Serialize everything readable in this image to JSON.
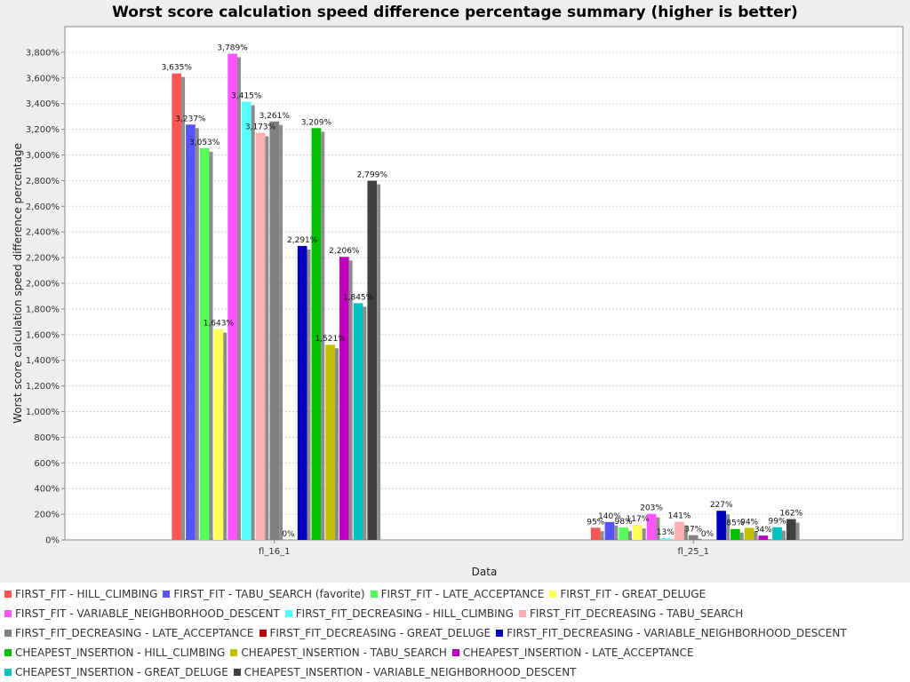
{
  "chart_data": {
    "type": "bar",
    "title": "Worst score calculation speed difference percentage summary (higher is better)",
    "xlabel": "Data",
    "ylabel": "Worst score calculation speed difference percentage",
    "ylim": [
      0,
      4000
    ],
    "yticks": [
      "0%",
      "200%",
      "400%",
      "600%",
      "800%",
      "1,000%",
      "1,200%",
      "1,400%",
      "1,600%",
      "1,800%",
      "2,000%",
      "2,200%",
      "2,400%",
      "2,600%",
      "2,800%",
      "3,000%",
      "3,200%",
      "3,400%",
      "3,600%",
      "3,800%"
    ],
    "ytick_values": [
      0,
      200,
      400,
      600,
      800,
      1000,
      1200,
      1400,
      1600,
      1800,
      2000,
      2200,
      2400,
      2600,
      2800,
      3000,
      3200,
      3400,
      3600,
      3800
    ],
    "grid": true,
    "legend_position": "bottom",
    "categories": [
      "fl_16_1",
      "fl_25_1"
    ],
    "series": [
      {
        "name": "FIRST_FIT - HILL_CLIMBING",
        "color": "#ff5555",
        "values": [
          3635,
          95
        ],
        "labels": [
          "3,635%",
          "95%"
        ]
      },
      {
        "name": "FIRST_FIT - TABU_SEARCH (favorite)",
        "color": "#5555ff",
        "values": [
          3237,
          140
        ],
        "labels": [
          "3,237%",
          "140%"
        ]
      },
      {
        "name": "FIRST_FIT - LATE_ACCEPTANCE",
        "color": "#55ff55",
        "values": [
          3053,
          98
        ],
        "labels": [
          "3,053%",
          "98%"
        ]
      },
      {
        "name": "FIRST_FIT - GREAT_DELUGE",
        "color": "#ffff55",
        "values": [
          1643,
          117
        ],
        "labels": [
          "1,643%",
          "117%"
        ]
      },
      {
        "name": "FIRST_FIT - VARIABLE_NEIGHBORHOOD_DESCENT",
        "color": "#ff55ff",
        "values": [
          3789,
          203
        ],
        "labels": [
          "3,789%",
          "203%"
        ]
      },
      {
        "name": "FIRST_FIT_DECREASING - HILL_CLIMBING",
        "color": "#55ffff",
        "values": [
          3415,
          13
        ],
        "labels": [
          "3,415%",
          "13%"
        ]
      },
      {
        "name": "FIRST_FIT_DECREASING - TABU_SEARCH",
        "color": "#ffafaf",
        "values": [
          3173,
          141
        ],
        "labels": [
          "3,173%",
          "141%"
        ]
      },
      {
        "name": "FIRST_FIT_DECREASING - LATE_ACCEPTANCE",
        "color": "#808080",
        "values": [
          3261,
          37
        ],
        "labels": [
          "3,261%",
          "37%"
        ]
      },
      {
        "name": "FIRST_FIT_DECREASING - GREAT_DELUGE",
        "color": "#c00000",
        "values": [
          0,
          0
        ],
        "labels": [
          "0%",
          "0%"
        ]
      },
      {
        "name": "FIRST_FIT_DECREASING - VARIABLE_NEIGHBORHOOD_DESCENT",
        "color": "#0000c0",
        "values": [
          2291,
          227
        ],
        "labels": [
          "2,291%",
          "227%"
        ]
      },
      {
        "name": "CHEAPEST_INSERTION - HILL_CLIMBING",
        "color": "#00c000",
        "values": [
          3209,
          85
        ],
        "labels": [
          "3,209%",
          "85%"
        ]
      },
      {
        "name": "CHEAPEST_INSERTION - TABU_SEARCH",
        "color": "#c0c000",
        "values": [
          1521,
          94
        ],
        "labels": [
          "1,521%",
          "94%"
        ]
      },
      {
        "name": "CHEAPEST_INSERTION - LATE_ACCEPTANCE",
        "color": "#c000c0",
        "values": [
          2206,
          34
        ],
        "labels": [
          "2,206%",
          "34%"
        ]
      },
      {
        "name": "CHEAPEST_INSERTION - GREAT_DELUGE",
        "color": "#00c0c0",
        "values": [
          1845,
          99
        ],
        "labels": [
          "1,845%",
          "99%"
        ]
      },
      {
        "name": "CHEAPEST_INSERTION - VARIABLE_NEIGHBORHOOD_DESCENT",
        "color": "#404040",
        "values": [
          2799,
          162
        ],
        "labels": [
          "2,799%",
          "162%"
        ]
      }
    ]
  }
}
